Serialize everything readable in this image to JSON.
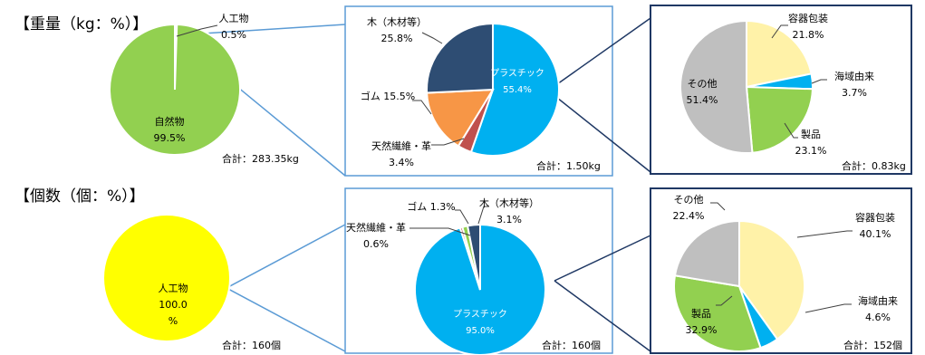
{
  "rows": [
    {
      "heading": "【重量（kg：%）】",
      "charts": [
        {
          "type": "pie",
          "total_label": "合計：283.35kg",
          "slices": [
            {
              "name": "人工物",
              "value": 0.5,
              "color": "#ffffff",
              "label": [
                "人工物",
                "0.5%"
              ]
            },
            {
              "name": "自然物",
              "value": 99.5,
              "color": "#92d050",
              "label": [
                "自然物",
                "99.5%"
              ]
            }
          ]
        },
        {
          "type": "pie",
          "total_label": "合計：1.50kg",
          "slices": [
            {
              "name": "プラスチック",
              "value": 55.4,
              "color": "#00b0f0",
              "label": [
                "プラスチック",
                "55.4%"
              ]
            },
            {
              "name": "天然繊維・革",
              "value": 3.4,
              "color": "#c0504d",
              "label": [
                "天然繊維・革",
                "3.4%"
              ]
            },
            {
              "name": "ゴム",
              "value": 15.5,
              "color": "#f79646",
              "label": [
                "ゴム 15.5%"
              ]
            },
            {
              "name": "木（木材等）",
              "value": 25.8,
              "color": "#2e4d73",
              "label": [
                "木（木材等）",
                "25.8%"
              ]
            }
          ]
        },
        {
          "type": "pie",
          "total_label": "合計：0.83kg",
          "slices": [
            {
              "name": "容器包装",
              "value": 21.8,
              "color": "#fff2a8",
              "label": [
                "容器包装",
                "21.8%"
              ]
            },
            {
              "name": "海域由来",
              "value": 3.7,
              "color": "#00b0f0",
              "label": [
                "海域由来",
                "3.7%"
              ]
            },
            {
              "name": "製品",
              "value": 23.1,
              "color": "#92d050",
              "label": [
                "製品",
                "23.1%"
              ]
            },
            {
              "name": "その他",
              "value": 51.4,
              "color": "#bfbfbf",
              "label": [
                "その他",
                "51.4%"
              ]
            }
          ]
        }
      ]
    },
    {
      "heading": "【個数（個：%）】",
      "charts": [
        {
          "type": "pie",
          "total_label": "合計：160個",
          "slices": [
            {
              "name": "人工物",
              "value": 100.0,
              "color": "#ffff00",
              "label": [
                "人工物",
                "100.0",
                "%"
              ]
            }
          ]
        },
        {
          "type": "pie",
          "total_label": "合計：160個",
          "slices": [
            {
              "name": "プラスチック",
              "value": 95.0,
              "color": "#00b0f0",
              "label": [
                "プラスチック",
                "95.0%"
              ]
            },
            {
              "name": "天然繊維・革",
              "value": 0.6,
              "color": "#c0504d",
              "label": [
                "天然繊維・革",
                "0.6%"
              ]
            },
            {
              "name": "ゴム",
              "value": 1.3,
              "color": "#92d050",
              "label": [
                "ゴム 1.3%"
              ]
            },
            {
              "name": "木（木材等）",
              "value": 3.1,
              "color": "#2e4d73",
              "label": [
                "木（木材等）",
                "3.1%"
              ]
            }
          ]
        },
        {
          "type": "pie",
          "total_label": "合計：152個",
          "slices": [
            {
              "name": "容器包装",
              "value": 40.1,
              "color": "#fff2a8",
              "label": [
                "容器包装",
                "40.1%"
              ]
            },
            {
              "name": "海域由来",
              "value": 4.6,
              "color": "#00b0f0",
              "label": [
                "海域由来",
                "4.6%"
              ]
            },
            {
              "name": "製品",
              "value": 32.9,
              "color": "#92d050",
              "label": [
                "製品",
                "32.9%"
              ]
            },
            {
              "name": "その他",
              "value": 22.4,
              "color": "#bfbfbf",
              "label": [
                "その他",
                "22.4%"
              ]
            }
          ]
        }
      ]
    }
  ],
  "chart_data": [
    {
      "type": "pie",
      "title": "【重量（kg：%）】",
      "categories": [
        "人工物",
        "自然物"
      ],
      "values": [
        0.5,
        99.5
      ],
      "total": "合計：283.35kg"
    },
    {
      "type": "pie",
      "categories": [
        "プラスチック",
        "天然繊維・革",
        "ゴム",
        "木（木材等）"
      ],
      "values": [
        55.4,
        3.4,
        15.5,
        25.8
      ],
      "total": "合計：1.50kg"
    },
    {
      "type": "pie",
      "categories": [
        "容器包装",
        "海域由来",
        "製品",
        "その他"
      ],
      "values": [
        21.8,
        3.7,
        23.1,
        51.4
      ],
      "total": "合計：0.83kg"
    },
    {
      "type": "pie",
      "title": "【個数（個：%）】",
      "categories": [
        "人工物"
      ],
      "values": [
        100.0
      ],
      "total": "合計：160個"
    },
    {
      "type": "pie",
      "categories": [
        "プラスチック",
        "天然繊維・革",
        "ゴム",
        "木（木材等）"
      ],
      "values": [
        95.0,
        0.6,
        1.3,
        3.1
      ],
      "total": "合計：160個"
    },
    {
      "type": "pie",
      "categories": [
        "容器包装",
        "海域由来",
        "製品",
        "その他"
      ],
      "values": [
        40.1,
        4.6,
        32.9,
        22.4
      ],
      "total": "合計：152個"
    }
  ]
}
